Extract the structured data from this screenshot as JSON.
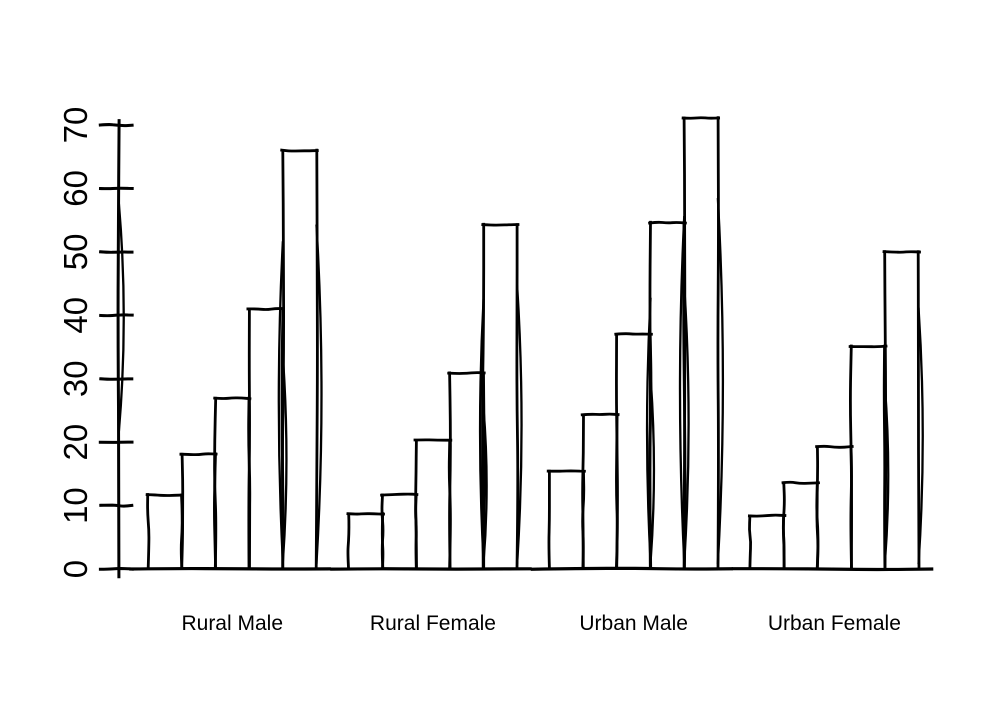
{
  "chart_data": {
    "type": "bar",
    "title": "",
    "xlabel": "",
    "ylabel": "",
    "categories": [
      "Rural Male",
      "Rural Female",
      "Urban Male",
      "Urban Female"
    ],
    "series": [
      {
        "name": "Rural Male",
        "values": [
          11.7,
          18.1,
          26.9,
          41.0,
          66.0
        ]
      },
      {
        "name": "Rural Female",
        "values": [
          8.7,
          11.7,
          20.3,
          30.9,
          54.3
        ]
      },
      {
        "name": "Urban Male",
        "values": [
          15.4,
          24.3,
          37.0,
          54.6,
          71.1
        ]
      },
      {
        "name": "Urban Female",
        "values": [
          8.4,
          13.6,
          19.3,
          35.1,
          50.0
        ]
      }
    ],
    "bars_per_group": 5,
    "y_axis": {
      "ticks": [
        0,
        10,
        20,
        30,
        40,
        50,
        60,
        70
      ],
      "tick_labels": [
        "0",
        "10",
        "20",
        "30",
        "40",
        "50",
        "60",
        "70"
      ],
      "lim": [
        0,
        71.1
      ],
      "tick_label_rotation_deg": 90
    },
    "legend_position": "none",
    "grid": false,
    "style": {
      "bar_fill": "#ffffff",
      "ink": "#000000",
      "background": "#ffffff",
      "rendering": "hand-drawn-sketch"
    }
  }
}
